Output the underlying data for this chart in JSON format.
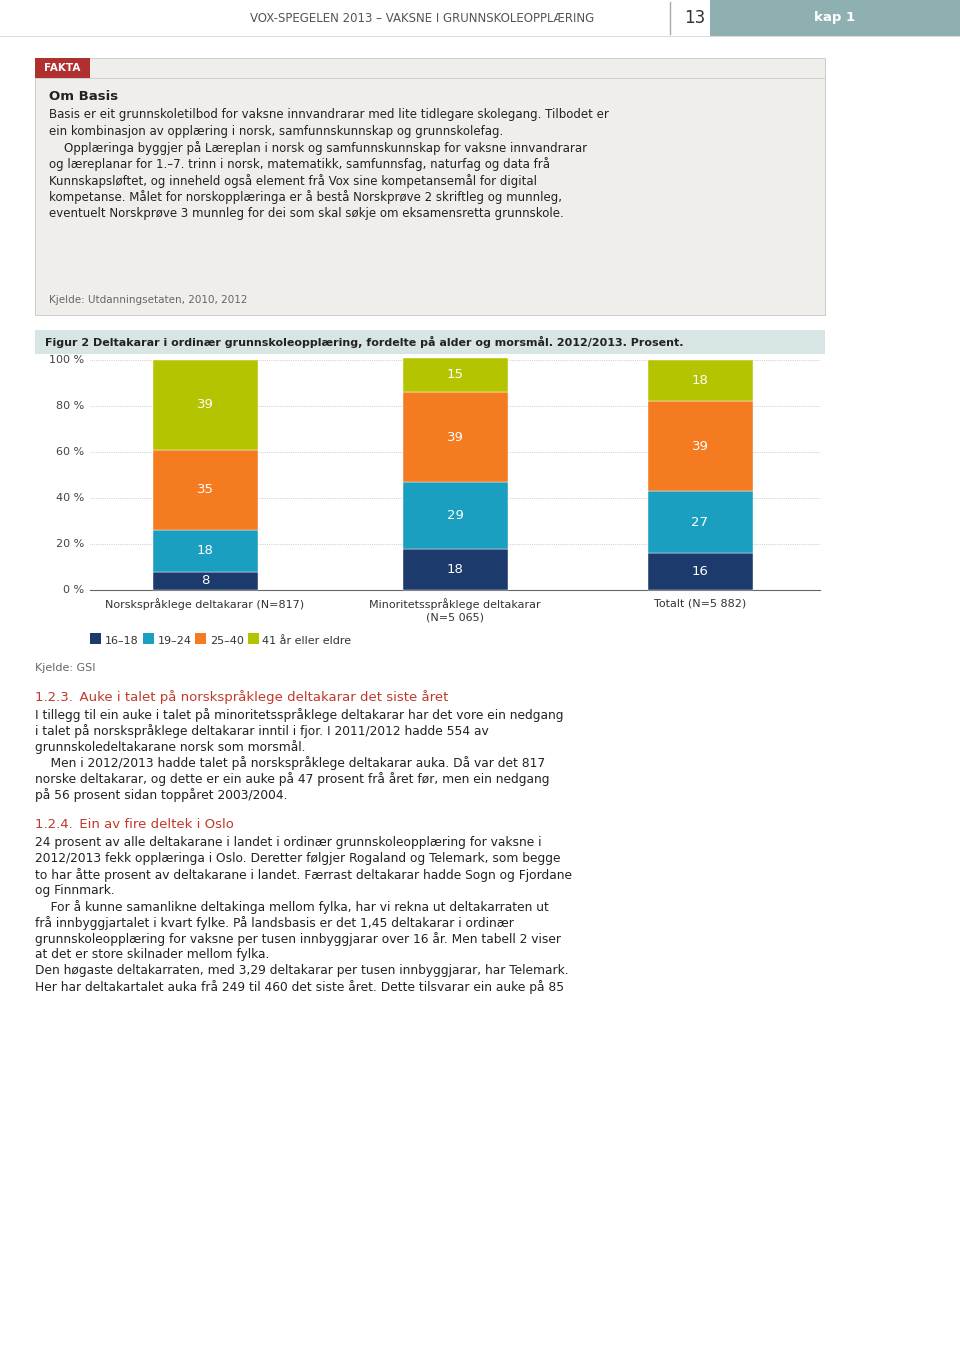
{
  "page_title": "VOX-SPEGELEN 2013 – VAKSNE I GRUNNSKOLEOPPLÆRING",
  "page_number": "13",
  "chapter": "kap 1",
  "fakta_label": "FAKTA",
  "fakta_title": "Om Basis",
  "fakta_text_lines": [
    "Basis er eit grunnskoletilbod for vaksne innvandrarar med lite tidlegare skolegang. Tilbodet er",
    "ein kombinasjon av opplæring i norsk, samfunnskunnskap og grunnskolefag.",
    "    Opplæringa byggjer på Læreplan i norsk og samfunnskunnskap for vaksne innvandrarar",
    "og læreplanar for 1.–7. trinn i norsk, matematikk, samfunnsfag, naturfag og data frå",
    "Kunnskapsløftet, og inneheld også element frå Vox sine kompetansemål for digital",
    "kompetanse. Målet for norskopplæringa er å bestå Norskprøve 2 skriftleg og munnleg,",
    "eventuelt Norskprøve 3 munnleg for dei som skal søkje om eksamensretta grunnskole."
  ],
  "fakta_source": "Kjelde: Utdanningsetaten, 2010, 2012",
  "chart_title": "Figur 2 Deltakarar i ordinær grunnskoleopplæring, fordelte på alder og morsmål. 2012/2013. Prosent.",
  "categories": [
    "Norskspråklege deltakarar (N=817)",
    "Minoritetsspråklege deltakarar\n(N=5 065)",
    "Totalt (N=5 882)"
  ],
  "series_keys": [
    "16-18",
    "19-24",
    "25-40",
    "41 år eller eldre"
  ],
  "series": {
    "16-18": [
      8,
      18,
      16
    ],
    "19-24": [
      18,
      29,
      27
    ],
    "25-40": [
      35,
      39,
      39
    ],
    "41 år eller eldre": [
      39,
      15,
      18
    ]
  },
  "colors": {
    "16-18": "#1c3a6b",
    "19-24": "#1a9fc0",
    "25-40": "#f47b20",
    "41 år eller eldre": "#b5c400"
  },
  "ytick_vals": [
    0,
    20,
    40,
    60,
    80,
    100
  ],
  "chart_source": "Kjelde: GSI",
  "section_title_1": "1.2.3. Auke i talet på norskspråklege deltakarar det siste året",
  "section_text_1": [
    "I tillegg til ein auke i talet på minoritetsspråklege deltakarar har det vore ein nedgang",
    "i talet på norskspråklege deltakarar inntil i fjor. I 2011/2012 hadde 554 av",
    "grunnskoledeltakarane norsk som morsmål.",
    "    Men i 2012/2013 hadde talet på norskspråklege deltakarar auka. Då var det 817",
    "norske deltakarar, og dette er ein auke på 47 prosent frå året før, men ein nedgang",
    "på 56 prosent sidan toppåret 2003/2004."
  ],
  "section_title_2": "1.2.4. Ein av fire deltek i Oslo",
  "section_text_2": [
    "24 prosent av alle deltakarane i landet i ordinær grunnskoleopplæring for vaksne i",
    "2012/2013 fekk opplæringa i Oslo. Deretter følgjer Rogaland og Telemark, som begge",
    "to har åtte prosent av deltakarane i landet. Færrast deltakarar hadde Sogn og Fjordane",
    "og Finnmark.",
    "    For å kunne samanlikne deltakinga mellom fylka, har vi rekna ut deltakarraten ut",
    "frå innbyggjartalet i kvart fylke. På landsbasis er det 1,45 deltakarar i ordinær",
    "grunnskoleopplæring for vaksne per tusen innbyggjarar over 16 år. Men tabell 2 viser",
    "at det er store skilnader mellom fylka.",
    "Den høgaste deltakarraten, med 3,29 deltakarar per tusen innbyggjarar, har Telemark.",
    "Her har deltakartalet auka frå 249 til 460 det siste året. Dette tilsvarar ein auke på 85"
  ],
  "page_bg": "#ffffff",
  "fakta_bg": "#f0eeea",
  "header_teal": "#8fb0b0",
  "red_label": "#b03030",
  "section_red": "#c0392b",
  "chart_title_bg": "#d8e5e5",
  "grid_color": "#aaaaaa",
  "text_dark": "#222222",
  "text_mid": "#444444",
  "text_light": "#666666"
}
